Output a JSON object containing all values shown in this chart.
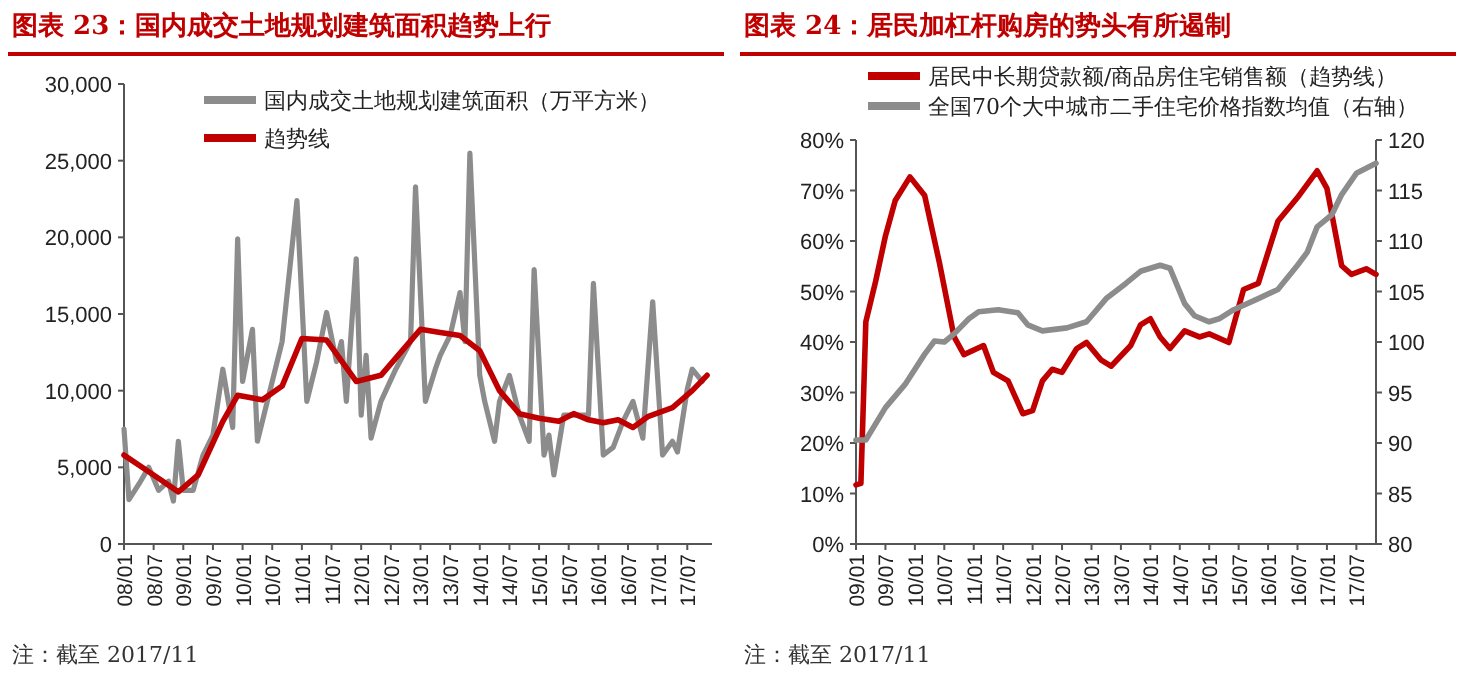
{
  "chart_data": [
    {
      "type": "line",
      "title": "图表 23：国内成交土地规划建筑面积趋势上行",
      "annotations": [
        "注：截至 2017/11"
      ],
      "legend": "top",
      "grid": false,
      "marker": "none",
      "line_style": "solid",
      "xlim": [
        "2008-01",
        "2017-12"
      ],
      "ylim": [
        0,
        30000
      ],
      "xticks": [
        {
          "value": "2008-01",
          "label": "08/01"
        },
        {
          "value": "2008-07",
          "label": "08/07"
        },
        {
          "value": "2009-01",
          "label": "09/01"
        },
        {
          "value": "2009-07",
          "label": "09/07"
        },
        {
          "value": "2010-01",
          "label": "10/01"
        },
        {
          "value": "2010-07",
          "label": "10/07"
        },
        {
          "value": "2011-01",
          "label": "11/01"
        },
        {
          "value": "2011-07",
          "label": "11/07"
        },
        {
          "value": "2012-01",
          "label": "12/01"
        },
        {
          "value": "2012-07",
          "label": "12/07"
        },
        {
          "value": "2013-01",
          "label": "13/01"
        },
        {
          "value": "2013-07",
          "label": "13/07"
        },
        {
          "value": "2014-01",
          "label": "14/01"
        },
        {
          "value": "2014-07",
          "label": "14/07"
        },
        {
          "value": "2015-01",
          "label": "15/01"
        },
        {
          "value": "2015-07",
          "label": "15/07"
        },
        {
          "value": "2016-01",
          "label": "16/01"
        },
        {
          "value": "2016-07",
          "label": "16/07"
        },
        {
          "value": "2017-01",
          "label": "17/01"
        },
        {
          "value": "2017-07",
          "label": "17/07"
        }
      ],
      "yticks": [
        {
          "value": 0,
          "label": "0"
        },
        {
          "value": 5000,
          "label": "5,000"
        },
        {
          "value": 10000,
          "label": "10,000"
        },
        {
          "value": 15000,
          "label": "15,000"
        },
        {
          "value": 20000,
          "label": "20,000"
        },
        {
          "value": 25000,
          "label": "25,000"
        },
        {
          "value": 30000,
          "label": "30,000"
        }
      ],
      "series": [
        {
          "name": "国内成交土地规划建筑面积（万平方米）",
          "color": "#8c8c8c",
          "x": [
            "2008-01",
            "2008-02",
            "2008-04",
            "2008-06",
            "2008-08",
            "2008-10",
            "2008-11",
            "2008-12",
            "2009-01",
            "2009-03",
            "2009-05",
            "2009-07",
            "2009-09",
            "2009-11",
            "2009-12",
            "2010-01",
            "2010-03",
            "2010-04",
            "2010-06",
            "2010-09",
            "2010-12",
            "2011-02",
            "2011-04",
            "2011-06",
            "2011-08",
            "2011-09",
            "2011-10",
            "2011-12",
            "2012-01",
            "2012-02",
            "2012-03",
            "2012-05",
            "2012-08",
            "2012-11",
            "2012-12",
            "2013-02",
            "2013-04",
            "2013-05",
            "2013-07",
            "2013-09",
            "2013-10",
            "2013-11",
            "2014-01",
            "2014-02",
            "2014-04",
            "2014-05",
            "2014-07",
            "2014-09",
            "2014-11",
            "2014-12",
            "2015-02",
            "2015-03",
            "2015-04",
            "2015-06",
            "2015-09",
            "2015-11",
            "2015-12",
            "2016-02",
            "2016-04",
            "2016-06",
            "2016-08",
            "2016-10",
            "2016-12",
            "2017-02",
            "2017-04",
            "2017-05",
            "2017-07",
            "2017-08",
            "2017-10"
          ],
          "values": [
            7500,
            2900,
            3900,
            5000,
            3500,
            4100,
            2800,
            6700,
            3500,
            3500,
            5800,
            7100,
            11400,
            7600,
            19900,
            10600,
            14000,
            6700,
            9300,
            13200,
            22400,
            9300,
            11900,
            15100,
            11900,
            13200,
            9300,
            18600,
            8400,
            12300,
            6900,
            9300,
            11400,
            13200,
            23300,
            9300,
            11400,
            12300,
            13600,
            16400,
            13200,
            25500,
            11000,
            9300,
            6700,
            9300,
            11000,
            8400,
            6700,
            17900,
            5800,
            7100,
            4500,
            8400,
            8400,
            8400,
            17000,
            5800,
            6300,
            8000,
            9300,
            6900,
            15800,
            5800,
            6700,
            6000,
            10100,
            11400,
            10600
          ]
        },
        {
          "name": "趋势线",
          "color": "#c00000",
          "x": [
            "2008-01",
            "2008-07",
            "2008-12",
            "2009-04",
            "2009-09",
            "2009-12",
            "2010-05",
            "2010-09",
            "2011-01",
            "2011-06",
            "2011-10",
            "2011-12",
            "2012-05",
            "2012-09",
            "2013-01",
            "2013-05",
            "2013-09",
            "2014-01",
            "2014-05",
            "2014-09",
            "2015-01",
            "2015-05",
            "2015-08",
            "2015-11",
            "2016-02",
            "2016-05",
            "2016-08",
            "2016-11",
            "2017-04",
            "2017-08",
            "2017-11"
          ],
          "values": [
            5800,
            4500,
            3400,
            4500,
            8000,
            9700,
            9400,
            10300,
            13400,
            13300,
            11500,
            10600,
            11000,
            12500,
            14000,
            13800,
            13600,
            12600,
            10000,
            8500,
            8200,
            8000,
            8500,
            8100,
            7900,
            8100,
            7600,
            8300,
            8900,
            10000,
            11000
          ]
        }
      ]
    },
    {
      "type": "line",
      "title": "图表 24：居民加杠杆购房的势头有所遏制",
      "annotations": [
        "注：截至 2017/11"
      ],
      "legend": "top",
      "grid": false,
      "marker": "none",
      "line_style": "solid",
      "xlim": [
        "2009-01",
        "2017-11"
      ],
      "ylim": [
        0,
        80
      ],
      "y2lim": [
        80,
        120
      ],
      "xticks": [
        {
          "value": "2009-01",
          "label": "09/01"
        },
        {
          "value": "2009-07",
          "label": "09/07"
        },
        {
          "value": "2010-01",
          "label": "10/01"
        },
        {
          "value": "2010-07",
          "label": "10/07"
        },
        {
          "value": "2011-01",
          "label": "11/01"
        },
        {
          "value": "2011-07",
          "label": "11/07"
        },
        {
          "value": "2012-01",
          "label": "12/01"
        },
        {
          "value": "2012-07",
          "label": "12/07"
        },
        {
          "value": "2013-01",
          "label": "13/01"
        },
        {
          "value": "2013-07",
          "label": "13/07"
        },
        {
          "value": "2014-01",
          "label": "14/01"
        },
        {
          "value": "2014-07",
          "label": "14/07"
        },
        {
          "value": "2015-01",
          "label": "15/01"
        },
        {
          "value": "2015-07",
          "label": "15/07"
        },
        {
          "value": "2016-01",
          "label": "16/01"
        },
        {
          "value": "2016-07",
          "label": "16/07"
        },
        {
          "value": "2017-01",
          "label": "17/01"
        },
        {
          "value": "2017-07",
          "label": "17/07"
        }
      ],
      "yticks": [
        {
          "value": 0,
          "label": "0%"
        },
        {
          "value": 10,
          "label": "10%"
        },
        {
          "value": 20,
          "label": "20%"
        },
        {
          "value": 30,
          "label": "30%"
        },
        {
          "value": 40,
          "label": "40%"
        },
        {
          "value": 50,
          "label": "50%"
        },
        {
          "value": 60,
          "label": "60%"
        },
        {
          "value": 70,
          "label": "70%"
        },
        {
          "value": 80,
          "label": "80%"
        }
      ],
      "y2ticks": [
        80,
        85,
        90,
        95,
        100,
        105,
        110,
        115,
        120
      ],
      "series": [
        {
          "name": "居民中长期贷款额/商品房住宅销售额（趋势线）",
          "color": "#c00000",
          "x": [
            "2009-01",
            "2009-02",
            "2009-03",
            "2009-05",
            "2009-07",
            "2009-09",
            "2009-12",
            "2010-03",
            "2010-06",
            "2010-09",
            "2010-11",
            "2011-03",
            "2011-05",
            "2011-08",
            "2011-11",
            "2012-01",
            "2012-03",
            "2012-05",
            "2012-07",
            "2012-10",
            "2012-12",
            "2013-03",
            "2013-05",
            "2013-09",
            "2013-11",
            "2014-01",
            "2014-03",
            "2014-05",
            "2014-08",
            "2014-11",
            "2015-01",
            "2015-05",
            "2015-08",
            "2015-11",
            "2016-03",
            "2016-07",
            "2016-11",
            "2017-01",
            "2017-04",
            "2017-06",
            "2017-09",
            "2017-11"
          ],
          "values": [
            11.7,
            12,
            44,
            52,
            61,
            68,
            72.7,
            69,
            55.7,
            41,
            37.5,
            39.3,
            34,
            32.3,
            25.8,
            26.4,
            32.3,
            34.6,
            34,
            38.7,
            39.9,
            36.4,
            35.2,
            39.3,
            43.4,
            44.6,
            41,
            38.7,
            42.2,
            41,
            41.6,
            39.9,
            50.4,
            51.6,
            63.9,
            68.6,
            73.9,
            70.4,
            55.1,
            53.4,
            54.5,
            53.4
          ]
        },
        {
          "name": "全国70个大中城市二手住宅价格指数均值（右轴）",
          "color": "#8c8c8c",
          "axis": "y2",
          "x": [
            "2009-01",
            "2009-03",
            "2009-07",
            "2009-11",
            "2010-03",
            "2010-05",
            "2010-07",
            "2010-09",
            "2010-12",
            "2011-02",
            "2011-06",
            "2011-10",
            "2011-12",
            "2012-03",
            "2012-08",
            "2012-12",
            "2013-04",
            "2013-08",
            "2013-11",
            "2014-03",
            "2014-05",
            "2014-08",
            "2014-10",
            "2015-01",
            "2015-03",
            "2015-06",
            "2015-11",
            "2016-03",
            "2016-07",
            "2016-09",
            "2016-11",
            "2017-02",
            "2017-04",
            "2017-07",
            "2017-11"
          ],
          "values": [
            90.3,
            90.3,
            93.5,
            95.8,
            98.8,
            100.1,
            100,
            100.8,
            102.3,
            103,
            103.2,
            102.9,
            101.7,
            101.1,
            101.4,
            102,
            104.3,
            105.8,
            107,
            107.6,
            107.3,
            103.8,
            102.6,
            102,
            102.3,
            103.2,
            104.3,
            105.2,
            107.6,
            108.9,
            111.4,
            112.6,
            114.6,
            116.7,
            117.7
          ]
        }
      ]
    }
  ]
}
